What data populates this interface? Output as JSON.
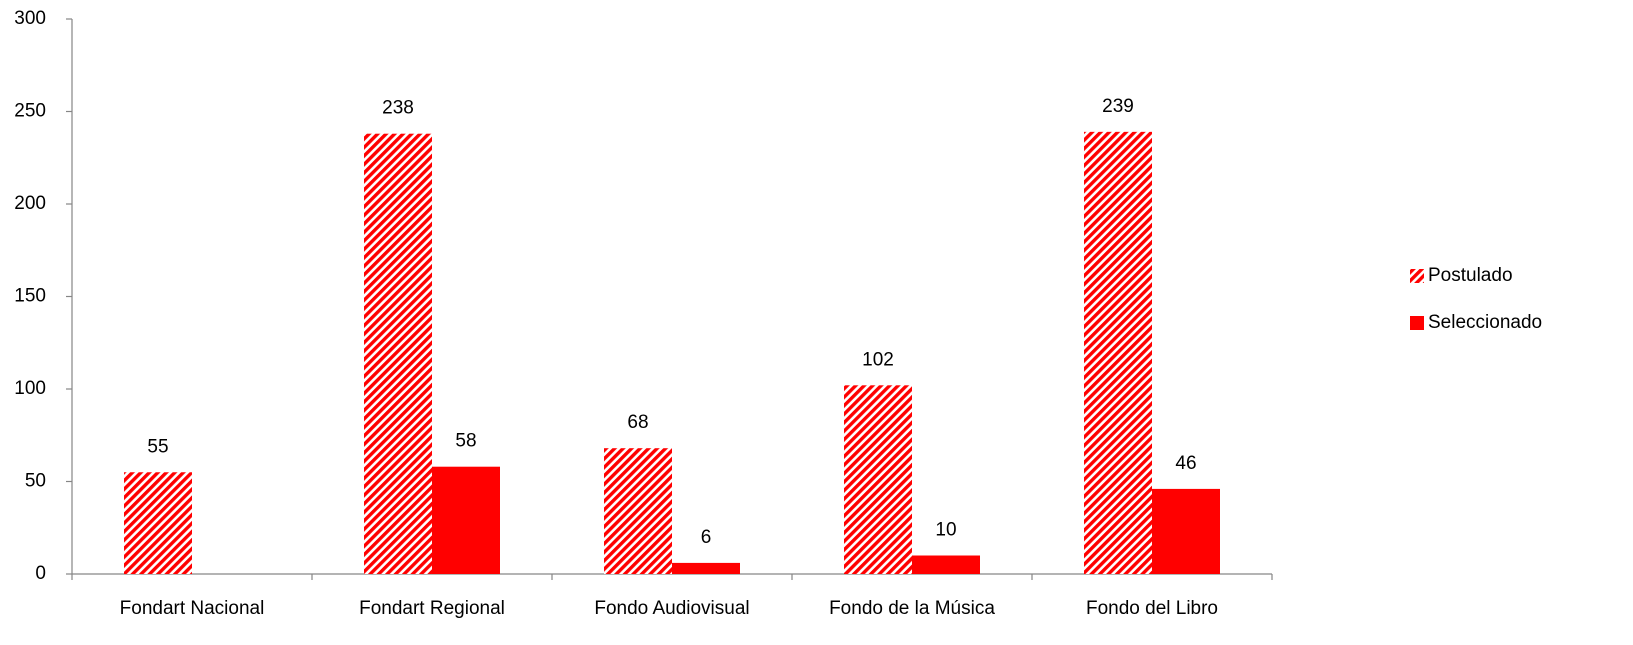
{
  "chart_data": {
    "type": "bar",
    "categories": [
      "Fondart Nacional",
      "Fondart Regional",
      "Fondo Audiovisual",
      "Fondo de la Música",
      "Fondo del Libro"
    ],
    "series": [
      {
        "name": "Postulado",
        "color": "#ff0000",
        "pattern": "diagonal",
        "values": [
          55,
          238,
          68,
          102,
          239
        ]
      },
      {
        "name": "Seleccionado",
        "color": "#ff0000",
        "values": [
          null,
          58,
          6,
          10,
          46
        ]
      }
    ],
    "ylim": [
      0,
      300
    ],
    "yticks": [
      0,
      50,
      100,
      150,
      200,
      250,
      300
    ],
    "grid": false,
    "legend": "right"
  }
}
